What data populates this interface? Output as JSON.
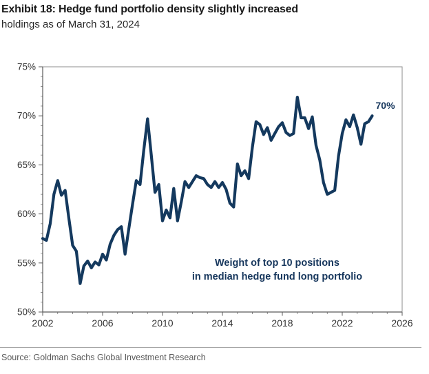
{
  "header": {
    "title": "Exhibit 18: Hedge fund portfolio density slightly increased",
    "subtitle": "holdings as of March 31, 2024"
  },
  "source": "Source: Goldman Sachs Global Investment Research",
  "colors": {
    "line": "#14395E",
    "annotation": "#17375D",
    "axis": "#595959",
    "border": "#8c8c8c",
    "tick": "#737373"
  },
  "chart_data": {
    "type": "line",
    "title": "Exhibit 18: Hedge fund portfolio density slightly increased",
    "subtitle": "holdings as of March 31, 2024",
    "annotation_line1": "Weight of top 10 positions",
    "annotation_line2": "in median hedge fund long portfolio",
    "end_label": "70%",
    "xlim": [
      2002,
      2026
    ],
    "ylim": [
      50,
      75
    ],
    "grid": false,
    "legend_position": "none",
    "y_ticks": [
      {
        "label": "75%",
        "value": 75
      },
      {
        "label": "70%",
        "value": 70
      },
      {
        "label": "65%",
        "value": 65
      },
      {
        "label": "60%",
        "value": 60
      },
      {
        "label": "55%",
        "value": 55
      },
      {
        "label": "50%",
        "value": 50
      }
    ],
    "x_ticks": [
      {
        "label": "2002",
        "value": 2002
      },
      {
        "label": "2006",
        "value": 2006
      },
      {
        "label": "2010",
        "value": 2010
      },
      {
        "label": "2014",
        "value": 2014
      },
      {
        "label": "2018",
        "value": 2018
      },
      {
        "label": "2022",
        "value": 2022
      },
      {
        "label": "2026",
        "value": 2026
      }
    ],
    "minor_tick_step_x": 1,
    "minor_tick_step_y": 1,
    "series": [
      {
        "name": "Weight of top 10 positions in median hedge fund long portfolio",
        "start": 2002.0,
        "step": 0.25,
        "frequency": "quarterly",
        "values": [
          57.5,
          57.3,
          59.0,
          62.0,
          63.4,
          61.9,
          62.4,
          59.5,
          56.8,
          56.2,
          52.9,
          54.7,
          55.2,
          54.5,
          55.1,
          54.8,
          55.9,
          55.3,
          56.9,
          57.8,
          58.4,
          58.7,
          55.9,
          58.5,
          61.0,
          63.4,
          63.0,
          66.5,
          69.7,
          66.0,
          62.2,
          63.0,
          59.3,
          60.4,
          59.6,
          62.6,
          59.3,
          61.2,
          63.3,
          62.7,
          63.3,
          63.9,
          63.7,
          63.6,
          63.0,
          62.7,
          63.3,
          62.7,
          63.2,
          62.5,
          61.1,
          60.7,
          65.1,
          63.9,
          64.4,
          63.6,
          66.8,
          69.4,
          69.1,
          68.1,
          68.8,
          67.5,
          68.2,
          68.9,
          69.3,
          68.3,
          68.0,
          68.2,
          71.9,
          69.8,
          69.8,
          68.7,
          69.9,
          67.0,
          65.5,
          63.2,
          62.0,
          62.2,
          62.4,
          65.9,
          68.2,
          69.6,
          68.9,
          70.1,
          68.8,
          67.1,
          69.2,
          69.4,
          70.0
        ]
      }
    ]
  }
}
